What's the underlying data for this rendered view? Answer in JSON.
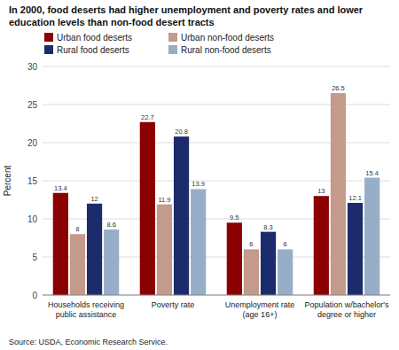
{
  "chart_data": {
    "type": "bar",
    "title": "In 2000, food deserts had higher unemployment and poverty rates and lower education levels than non-food desert tracts",
    "source": "Source: USDA, Economic Research Service.",
    "y_label": "Percent",
    "categories": [
      "Households receiving\npublic assistance",
      "Poverty rate",
      "Unemployment rate\n(age 16+)",
      "Population w/bachelor's\ndegree or higher"
    ],
    "series": [
      {
        "name": "Urban food deserts",
        "color": "#8B0000",
        "values": [
          13.4,
          22.7,
          9.5,
          13.0
        ]
      },
      {
        "name": "Urban non-food deserts",
        "color": "#C49A8A",
        "values": [
          8.0,
          11.9,
          6.0,
          26.5
        ]
      },
      {
        "name": "Rural food deserts",
        "color": "#1C2B6B",
        "values": [
          12.0,
          20.8,
          8.3,
          12.1
        ]
      },
      {
        "name": "Rural non-food deserts",
        "color": "#97AEC8",
        "values": [
          8.6,
          13.9,
          6.0,
          15.4
        ]
      }
    ],
    "ylim": [
      0,
      30
    ],
    "yticks": [
      0,
      5,
      10,
      15,
      20,
      25,
      30
    ],
    "grid": true,
    "legend": "top",
    "data_labels": true
  }
}
